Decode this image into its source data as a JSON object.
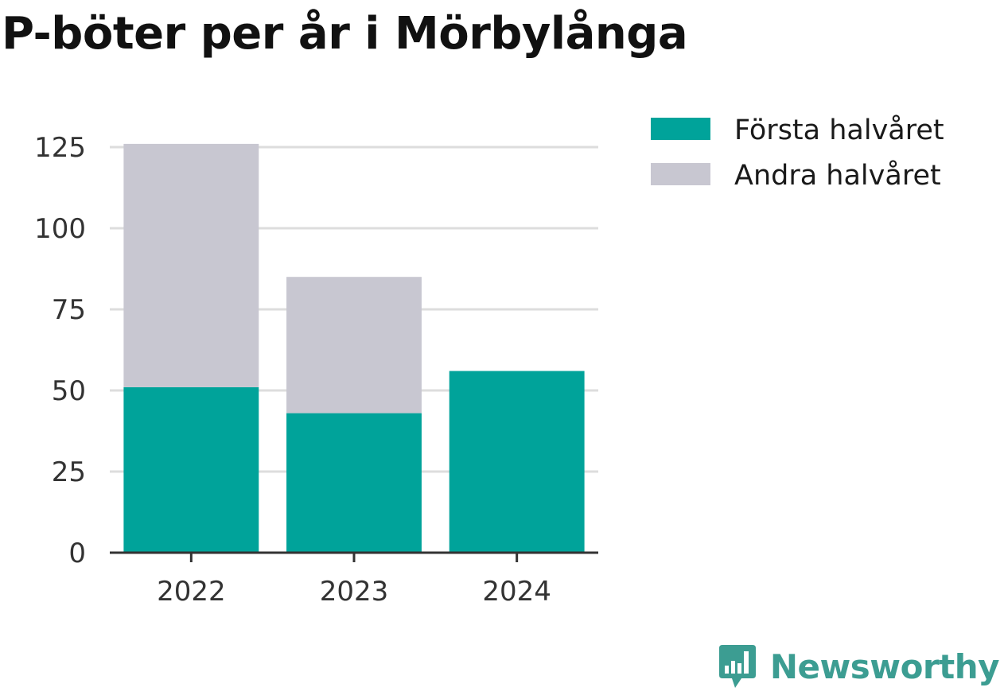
{
  "chart_data": {
    "type": "bar",
    "stacked": true,
    "title": "P-böter per år i Mörbylånga",
    "xlabel": "",
    "ylabel": "",
    "categories": [
      "2022",
      "2023",
      "2024"
    ],
    "series": [
      {
        "name": "Första halvåret",
        "color": "#00a39a",
        "values": [
          51,
          43,
          56
        ]
      },
      {
        "name": "Andra halvåret",
        "color": "#c8c7d1",
        "values": [
          75,
          42,
          0
        ]
      }
    ],
    "ylim": [
      0,
      125
    ],
    "yticks": [
      0,
      25,
      50,
      75,
      100,
      125
    ],
    "grid": true,
    "legend_position": "top-right"
  },
  "brand": {
    "name": "Newsworthy",
    "icon": "speech-bubble-bar-chart-icon",
    "color": "#3c9d92"
  },
  "colors": {
    "gridline": "#dddddd",
    "axis": "#333333"
  }
}
